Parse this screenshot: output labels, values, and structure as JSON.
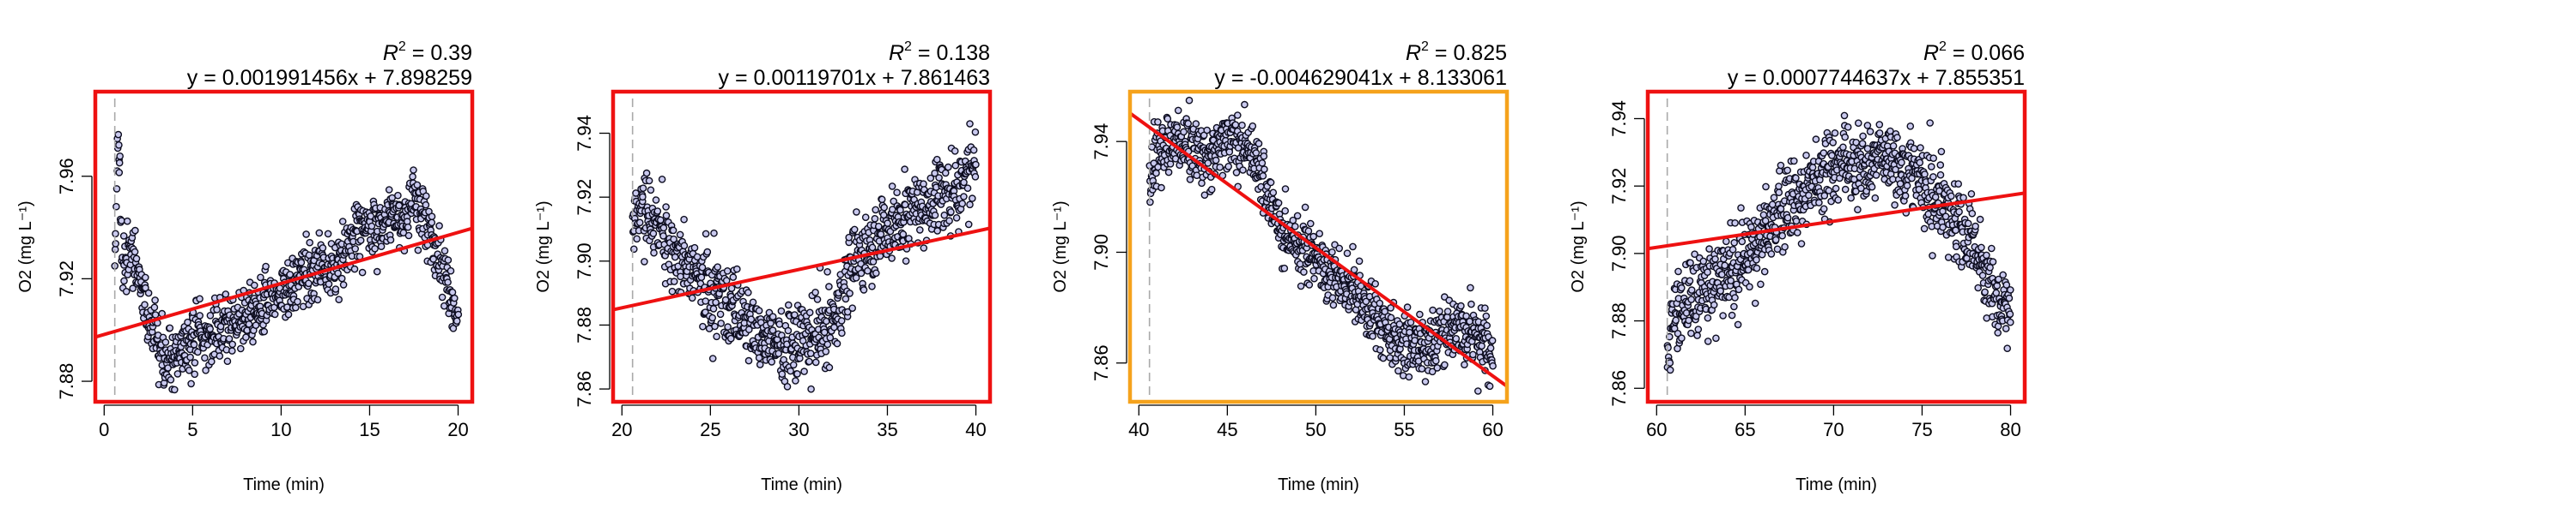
{
  "chart_data": [
    {
      "type": "scatter",
      "xlabel": "Time (min)",
      "ylabel": "O2 (mg L⁻¹)",
      "r2_value": "0.39",
      "equation": "y = 0.001991456x + 7.898259",
      "slope": 0.001991456,
      "intercept": 7.898259,
      "xlim": [
        -0.5,
        20.8
      ],
      "ylim": [
        7.872,
        7.993
      ],
      "xticks": [
        0,
        5,
        10,
        15,
        20
      ],
      "yticks": [
        7.88,
        7.92,
        7.96
      ],
      "marker_x": 0.6,
      "frame_color": "#ee1111",
      "line_color": "#ee1111",
      "x_range": [
        0.6,
        20.0
      ],
      "anchors": [
        [
          0.6,
          7.925
        ],
        [
          0.8,
          7.985
        ],
        [
          1.0,
          7.93
        ],
        [
          1.5,
          7.93
        ],
        [
          2.0,
          7.92
        ],
        [
          2.5,
          7.905
        ],
        [
          3.0,
          7.893
        ],
        [
          3.5,
          7.888
        ],
        [
          4.0,
          7.89
        ],
        [
          5.0,
          7.895
        ],
        [
          6.0,
          7.897
        ],
        [
          7.0,
          7.902
        ],
        [
          8.0,
          7.905
        ],
        [
          9.0,
          7.91
        ],
        [
          10.0,
          7.915
        ],
        [
          11.0,
          7.92
        ],
        [
          12.0,
          7.925
        ],
        [
          13.0,
          7.925
        ],
        [
          14.0,
          7.935
        ],
        [
          15.0,
          7.94
        ],
        [
          16.0,
          7.942
        ],
        [
          17.0,
          7.945
        ],
        [
          17.5,
          7.95
        ],
        [
          18.0,
          7.945
        ],
        [
          19.0,
          7.93
        ],
        [
          19.5,
          7.915
        ],
        [
          20.0,
          7.905
        ]
      ],
      "noise": 0.006
    },
    {
      "type": "scatter",
      "xlabel": "Time (min)",
      "ylabel": "O2 (mg L⁻¹)",
      "r2_value": "0.138",
      "equation": "y = 0.00119701x + 7.861463",
      "slope": 0.00119701,
      "intercept": 7.861463,
      "xlim": [
        19.5,
        40.8
      ],
      "ylim": [
        7.856,
        7.953
      ],
      "xticks": [
        20,
        25,
        30,
        35,
        40
      ],
      "yticks": [
        7.86,
        7.88,
        7.9,
        7.92,
        7.94
      ],
      "marker_x": 20.6,
      "frame_color": "#ee1111",
      "line_color": "#ee1111",
      "x_range": [
        20.6,
        40.0
      ],
      "anchors": [
        [
          20.6,
          7.915
        ],
        [
          21.0,
          7.915
        ],
        [
          22.0,
          7.91
        ],
        [
          23.0,
          7.903
        ],
        [
          24.0,
          7.897
        ],
        [
          25.0,
          7.89
        ],
        [
          26.0,
          7.887
        ],
        [
          27.0,
          7.882
        ],
        [
          28.0,
          7.877
        ],
        [
          29.0,
          7.872
        ],
        [
          30.0,
          7.875
        ],
        [
          31.0,
          7.877
        ],
        [
          32.0,
          7.882
        ],
        [
          33.0,
          7.9
        ],
        [
          34.0,
          7.905
        ],
        [
          35.0,
          7.91
        ],
        [
          36.0,
          7.913
        ],
        [
          37.0,
          7.917
        ],
        [
          38.0,
          7.92
        ],
        [
          39.0,
          7.922
        ],
        [
          40.0,
          7.932
        ]
      ],
      "noise": 0.006
    },
    {
      "type": "scatter",
      "xlabel": "Time (min)",
      "ylabel": "O2 (mg L⁻¹)",
      "r2_value": "0.825",
      "equation": "y = -0.004629041x + 8.133061",
      "slope": -0.004629041,
      "intercept": 8.133061,
      "xlim": [
        39.5,
        60.8
      ],
      "ylim": [
        7.846,
        7.958
      ],
      "xticks": [
        40,
        45,
        50,
        55,
        60
      ],
      "yticks": [
        7.86,
        7.9,
        7.94
      ],
      "marker_x": 40.6,
      "frame_color": "#f5a21c",
      "line_color": "#ee1111",
      "x_range": [
        40.6,
        60.0
      ],
      "anchors": [
        [
          40.6,
          7.925
        ],
        [
          41.0,
          7.935
        ],
        [
          42.0,
          7.94
        ],
        [
          43.0,
          7.937
        ],
        [
          44.0,
          7.935
        ],
        [
          45.0,
          7.94
        ],
        [
          46.0,
          7.938
        ],
        [
          47.0,
          7.925
        ],
        [
          48.0,
          7.91
        ],
        [
          49.0,
          7.9
        ],
        [
          50.0,
          7.898
        ],
        [
          51.0,
          7.89
        ],
        [
          52.0,
          7.885
        ],
        [
          53.0,
          7.878
        ],
        [
          54.0,
          7.872
        ],
        [
          55.0,
          7.868
        ],
        [
          56.0,
          7.865
        ],
        [
          57.0,
          7.87
        ],
        [
          58.0,
          7.872
        ],
        [
          59.0,
          7.87
        ],
        [
          60.0,
          7.865
        ]
      ],
      "noise": 0.006
    },
    {
      "type": "scatter",
      "xlabel": "Time (min)",
      "ylabel": "O2 (mg L⁻¹)",
      "r2_value": "0.066",
      "equation": "y = 0.0007744637x + 7.855351",
      "slope": 0.0007744637,
      "intercept": 7.855351,
      "xlim": [
        59.5,
        80.8
      ],
      "ylim": [
        7.856,
        7.948
      ],
      "xticks": [
        60,
        65,
        70,
        75,
        80
      ],
      "yticks": [
        7.86,
        7.88,
        7.9,
        7.92,
        7.94
      ],
      "marker_x": 60.6,
      "frame_color": "#ee1111",
      "line_color": "#ee1111",
      "x_range": [
        60.6,
        80.0
      ],
      "anchors": [
        [
          60.6,
          7.87
        ],
        [
          61.0,
          7.885
        ],
        [
          62.0,
          7.888
        ],
        [
          63.0,
          7.89
        ],
        [
          64.0,
          7.895
        ],
        [
          65.0,
          7.9
        ],
        [
          66.0,
          7.905
        ],
        [
          67.0,
          7.912
        ],
        [
          68.0,
          7.918
        ],
        [
          69.0,
          7.922
        ],
        [
          70.0,
          7.925
        ],
        [
          71.0,
          7.928
        ],
        [
          72.0,
          7.927
        ],
        [
          73.0,
          7.93
        ],
        [
          74.0,
          7.925
        ],
        [
          75.0,
          7.922
        ],
        [
          76.0,
          7.915
        ],
        [
          77.0,
          7.91
        ],
        [
          78.0,
          7.9
        ],
        [
          79.0,
          7.888
        ],
        [
          80.0,
          7.882
        ]
      ],
      "noise": 0.006
    }
  ]
}
